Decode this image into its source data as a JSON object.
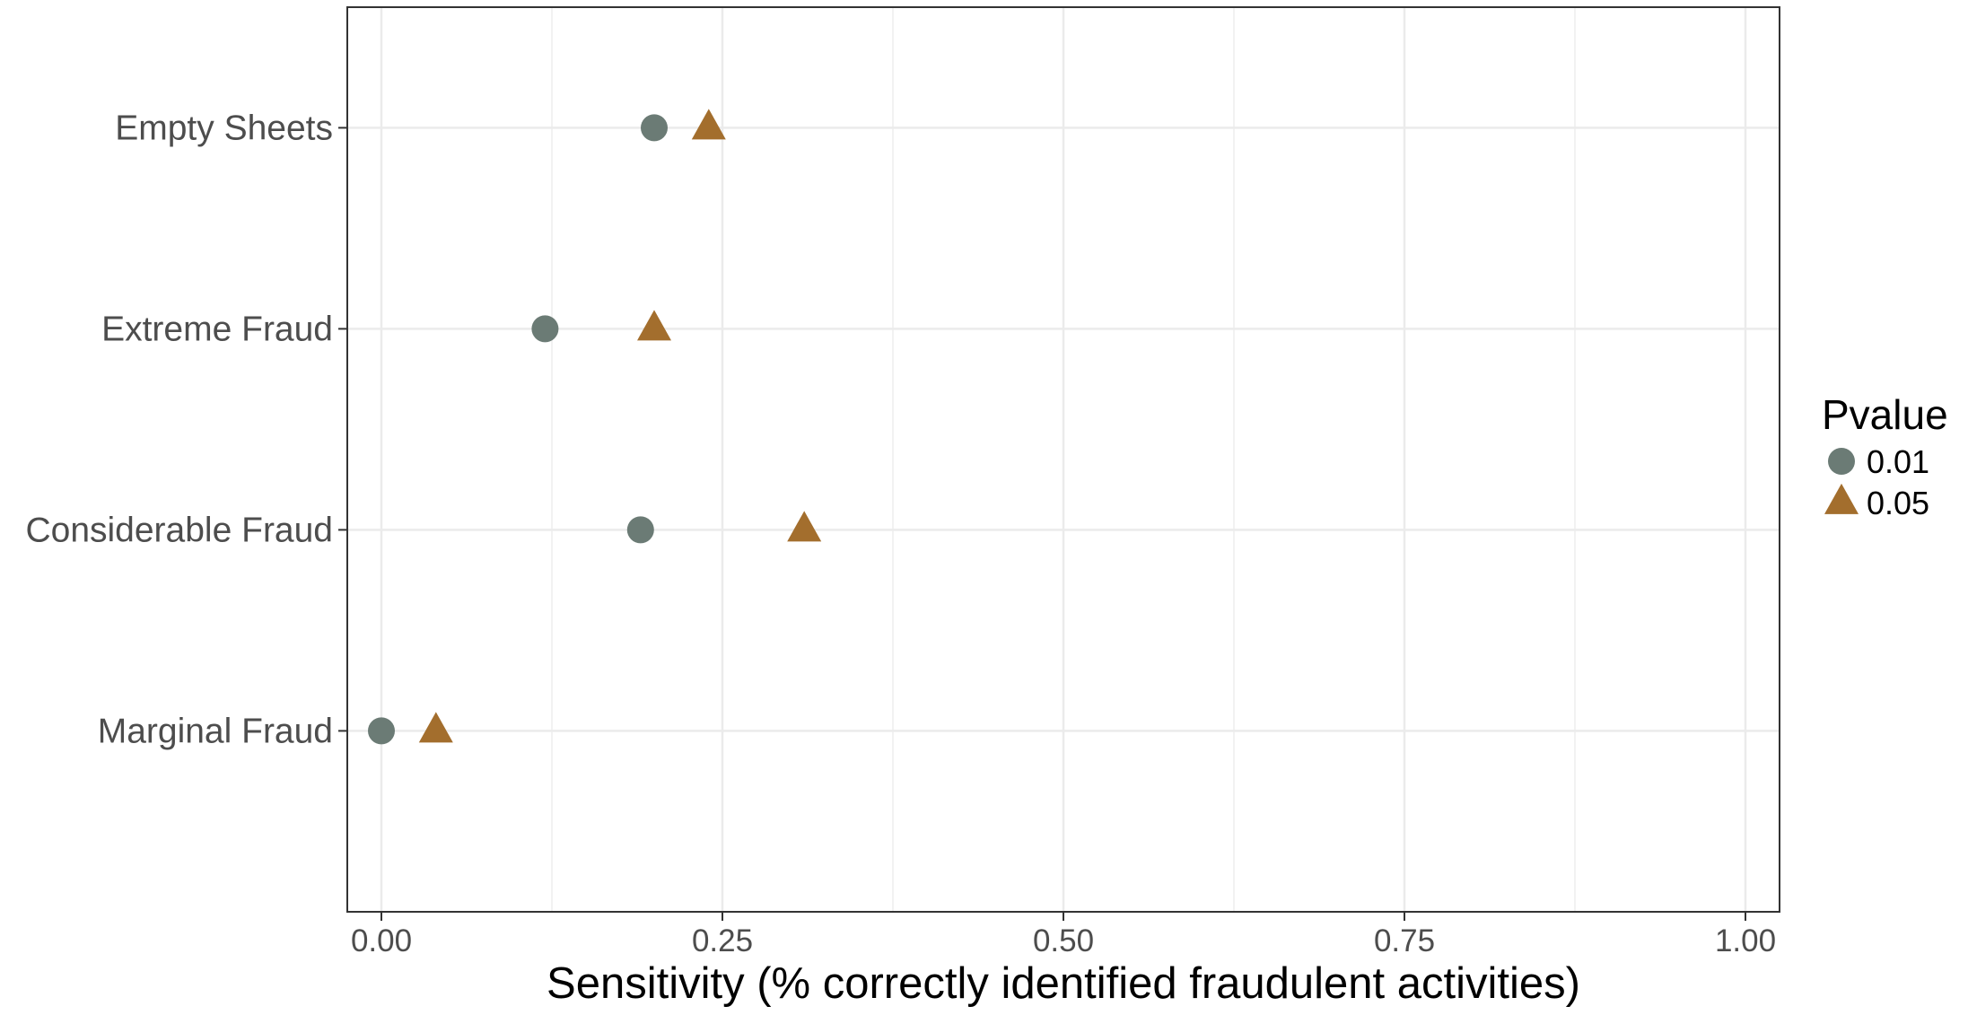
{
  "chart_data": {
    "type": "scatter",
    "title": "",
    "xlabel": "Sensitivity (% correctly identified fraudulent activities)",
    "ylabel": "",
    "xlim": [
      -0.025,
      1.025
    ],
    "xticks": [
      0.0,
      0.25,
      0.5,
      0.75,
      1.0
    ],
    "xtick_labels": [
      "0.00",
      "0.25",
      "0.50",
      "0.75",
      "1.00"
    ],
    "categories": [
      "Empty Sheets",
      "Extreme Fraud",
      "Considerable Fraud",
      "Marginal Fraud"
    ],
    "grid": true,
    "legend": {
      "title": "Pvalue",
      "position": "right"
    },
    "series": [
      {
        "name": "0.01",
        "shape": "circle",
        "color": "#6b7b75",
        "values": [
          0.2,
          0.12,
          0.19,
          0.0
        ]
      },
      {
        "name": "0.05",
        "shape": "triangle",
        "color": "#a36e2d",
        "values": [
          0.24,
          0.2,
          0.31,
          0.04
        ]
      }
    ]
  }
}
